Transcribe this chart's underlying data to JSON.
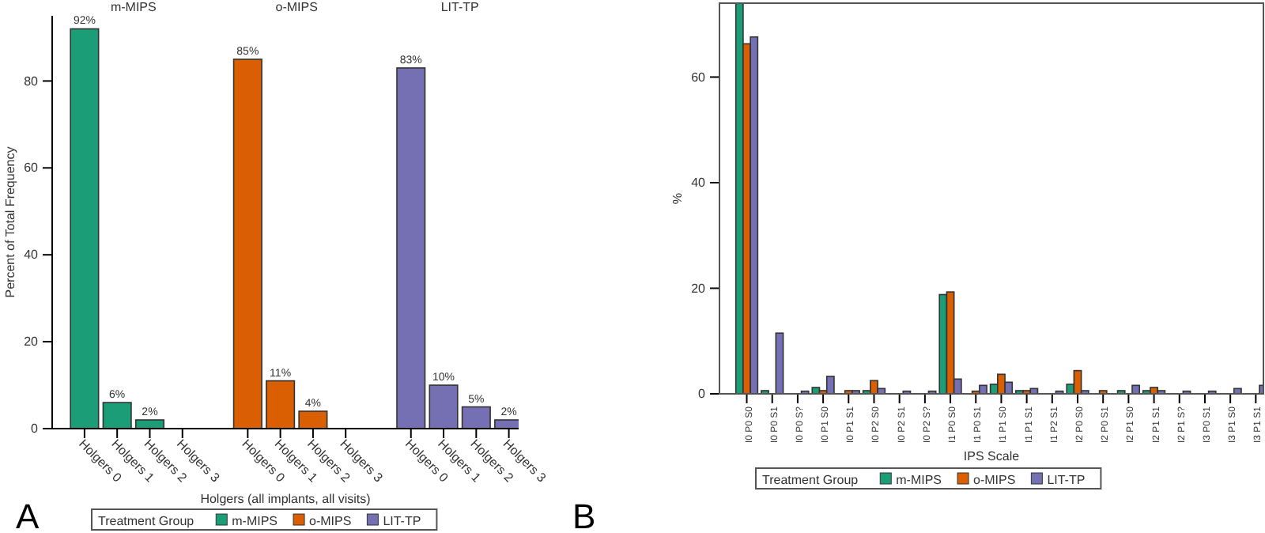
{
  "chart_data": [
    {
      "type": "bar",
      "xlabel": "Holgers (all implants, all visits)",
      "ylabel": "Percent of Total Frequency",
      "legend_title": "Treatment Group",
      "legend": "bottom",
      "ylim": [
        0,
        95
      ],
      "yticks": [
        0,
        20,
        40,
        60,
        80
      ],
      "categories": [
        "Holgers 0",
        "Holgers 1",
        "Holgers 2",
        "Holgers 3",
        "Holgers 0",
        "Holgers 1",
        "Holgers 2",
        "Holgers 3",
        "Holgers 0",
        "Holgers 1",
        "Holgers 2",
        "Holgers 3"
      ],
      "series": [
        {
          "name": "m-MIPS",
          "color": "#1b9e77",
          "values": [
            92,
            6,
            2,
            0,
            null,
            null,
            null,
            null,
            null,
            null,
            null,
            null
          ],
          "value_labels": [
            "92%",
            "6%",
            "2%",
            null,
            null,
            null,
            null,
            null,
            null,
            null,
            null,
            null
          ]
        },
        {
          "name": "o-MIPS",
          "color": "#d95f02",
          "values": [
            null,
            null,
            null,
            null,
            85,
            11,
            4,
            0,
            null,
            null,
            null,
            null
          ],
          "value_labels": [
            null,
            null,
            null,
            null,
            "85%",
            "11%",
            "4%",
            null,
            null,
            null,
            null,
            null
          ]
        },
        {
          "name": "LIT-TP",
          "color": "#7570b3",
          "values": [
            null,
            null,
            null,
            null,
            null,
            null,
            null,
            null,
            83,
            10,
            5,
            2
          ],
          "value_labels": [
            null,
            null,
            null,
            null,
            null,
            null,
            null,
            null,
            "83%",
            "10%",
            "5%",
            "2%"
          ]
        }
      ],
      "annotations": [
        "m-MIPS",
        "o-MIPS",
        "LIT-TP",
        "A"
      ]
    },
    {
      "type": "bar",
      "xlabel": "IPS Scale",
      "ylabel": "%",
      "legend_title": "Treatment Group",
      "legend": "bottom",
      "ylim": [
        0,
        74
      ],
      "yticks": [
        0,
        20,
        40,
        60
      ],
      "categories": [
        "I0 P0 S0",
        "I0 P0 S1",
        "I0 P0 S?",
        "I0 P1 S0",
        "I0 P1 S1",
        "I0 P2 S0",
        "I0 P2 S1",
        "I0 P2 S?",
        "I1 P0 S0",
        "I1 P0 S1",
        "I1 P1 S0",
        "I1 P1 S1",
        "I1 P2 S1",
        "I2 P0 S0",
        "I2 P0 S1",
        "I2 P1 S0",
        "I2 P1 S1",
        "I2 P1 S?",
        "I3 P0 S1",
        "I3 P1 S0",
        "I3 P1 S1"
      ],
      "series": [
        {
          "name": "m-MIPS",
          "color": "#1b9e77",
          "values": [
            74,
            0.6,
            0,
            1.2,
            0,
            0.6,
            0,
            0,
            18.8,
            0,
            1.8,
            0.6,
            0,
            1.8,
            0,
            0.6,
            0.6,
            0,
            0,
            0,
            0
          ]
        },
        {
          "name": "o-MIPS",
          "color": "#d95f02",
          "values": [
            66.3,
            0,
            0,
            0.6,
            0.6,
            2.5,
            0,
            0,
            19.3,
            0.5,
            3.7,
            0.6,
            0,
            4.4,
            0.6,
            0,
            1.2,
            0,
            0,
            0,
            0
          ]
        },
        {
          "name": "LIT-TP",
          "color": "#7570b3",
          "values": [
            67.6,
            11.5,
            0.5,
            3.3,
            0.6,
            1,
            0.5,
            0.5,
            2.8,
            1.6,
            2.2,
            1,
            0.5,
            0.6,
            0,
            1.6,
            0.6,
            0.5,
            0.5,
            1,
            1.6
          ]
        }
      ],
      "annotations": [
        "B"
      ]
    }
  ]
}
